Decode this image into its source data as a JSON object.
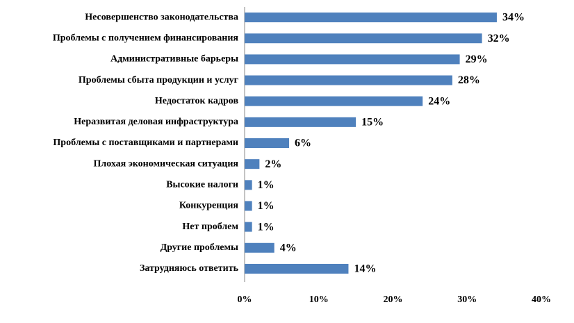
{
  "chart_data": {
    "type": "bar",
    "orientation": "horizontal",
    "categories": [
      "Несовершенство законодательства",
      "Проблемы с получением финансирования",
      "Административные барьеры",
      "Проблемы сбыта продукции и услуг",
      "Недостаток кадров",
      "Неразвитая деловая инфраструктура",
      "Проблемы с поставщиками и партнерами",
      "Плохая экономическая ситуация",
      "Высокие налоги",
      "Конкуренция",
      "Нет проблем",
      "Другие проблемы",
      "Затрудняюсь ответить"
    ],
    "values": [
      34,
      32,
      29,
      28,
      24,
      15,
      6,
      2,
      1,
      1,
      1,
      4,
      14
    ],
    "value_labels": [
      "34%",
      "32%",
      "29%",
      "28%",
      "24%",
      "15%",
      "6%",
      "2%",
      "1%",
      "1%",
      "1%",
      "4%",
      "14%"
    ],
    "color": "#4f81bd",
    "xlim": [
      0,
      40
    ],
    "xticks": [
      {
        "value": 0,
        "label": "0%"
      },
      {
        "value": 10,
        "label": "10%"
      },
      {
        "value": 20,
        "label": "20%"
      },
      {
        "value": 30,
        "label": "30%"
      },
      {
        "value": 40,
        "label": "40%"
      }
    ],
    "grid": false
  }
}
